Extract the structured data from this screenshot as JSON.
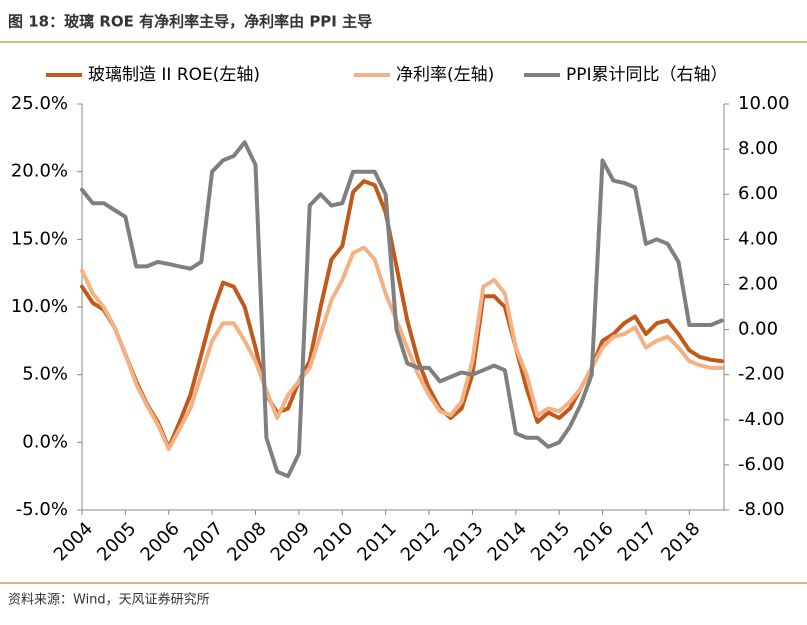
{
  "chart_data": {
    "type": "line",
    "title": "图 18：玻璃 ROE 有净利率主导，净利率由 PPI 主导",
    "source": "资料来源：Wind，天风证券研究所",
    "x": [
      2004,
      2004.25,
      2004.5,
      2004.75,
      2005,
      2005.25,
      2005.5,
      2005.75,
      2006,
      2006.25,
      2006.5,
      2006.75,
      2007,
      2007.25,
      2007.5,
      2007.75,
      2008,
      2008.25,
      2008.5,
      2008.75,
      2009,
      2009.25,
      2009.5,
      2009.75,
      2010,
      2010.25,
      2010.5,
      2010.75,
      2011,
      2011.25,
      2011.5,
      2011.75,
      2012,
      2012.25,
      2012.5,
      2012.75,
      2013,
      2013.25,
      2013.5,
      2013.75,
      2014,
      2014.25,
      2014.5,
      2014.75,
      2015,
      2015.25,
      2015.5,
      2015.75,
      2016,
      2016.25,
      2016.5,
      2016.75,
      2017,
      2017.25,
      2017.5,
      2017.75,
      2018,
      2018.25,
      2018.5,
      2018.75
    ],
    "xlim": [
      2004,
      2018.8
    ],
    "xticks": [
      2004,
      2005,
      2006,
      2007,
      2008,
      2009,
      2010,
      2011,
      2012,
      2013,
      2014,
      2015,
      2016,
      2017,
      2018
    ],
    "ylim": [
      -5,
      25
    ],
    "yticks": [
      {
        "value": -5,
        "label": "-5.0%"
      },
      {
        "value": 0,
        "label": "0.0%"
      },
      {
        "value": 5,
        "label": "5.0%"
      },
      {
        "value": 10,
        "label": "10.0%"
      },
      {
        "value": 15,
        "label": "15.0%"
      },
      {
        "value": 20,
        "label": "20.0%"
      },
      {
        "value": 25,
        "label": "25.0%"
      }
    ],
    "y2lim": [
      -8,
      10
    ],
    "y2ticks": [
      {
        "value": -8,
        "label": "-8.00"
      },
      {
        "value": -6,
        "label": "-6.00"
      },
      {
        "value": -4,
        "label": "-4.00"
      },
      {
        "value": -2,
        "label": "-2.00"
      },
      {
        "value": 0,
        "label": "0.00"
      },
      {
        "value": 2,
        "label": "2.00"
      },
      {
        "value": 4,
        "label": "4.00"
      },
      {
        "value": 6,
        "label": "6.00"
      },
      {
        "value": 8,
        "label": "8.00"
      },
      {
        "value": 10,
        "label": "10.00"
      }
    ],
    "grid": false,
    "legend": "top",
    "series": [
      {
        "name": "玻璃制造 II ROE(左轴)",
        "color": "#c0591a",
        "values": [
          11.5,
          10.3,
          9.8,
          8.5,
          6.5,
          4.5,
          2.8,
          1.5,
          -0.4,
          1.5,
          3.5,
          6.5,
          9.5,
          11.8,
          11.5,
          10,
          7,
          3.5,
          2.2,
          2.5,
          4.5,
          6,
          10,
          13.5,
          14.5,
          18.5,
          19.3,
          19,
          17,
          13,
          9,
          6,
          4,
          2.5,
          1.8,
          2.5,
          5,
          10.8,
          10.8,
          10,
          7,
          4,
          1.5,
          2.2,
          1.8,
          2.5,
          4,
          5.5,
          7.5,
          8,
          8.8,
          9.3,
          8,
          8.8,
          9,
          8,
          6.8,
          6.3,
          6.1,
          6.0
        ]
      },
      {
        "name": "净利率(左轴)",
        "color": "#f4b183",
        "values": [
          12.7,
          11,
          10,
          8.5,
          6.5,
          4.3,
          2.7,
          1.3,
          -0.5,
          1,
          2.5,
          5,
          7.5,
          8.8,
          8.8,
          7.5,
          6,
          3.8,
          1.8,
          3.5,
          4.5,
          5.5,
          8,
          10.5,
          12,
          14,
          14.4,
          13.5,
          11,
          9,
          7,
          5,
          3.5,
          2.3,
          2,
          3,
          6,
          11.5,
          12,
          11,
          7,
          5,
          2,
          2.5,
          2.3,
          3,
          4,
          5.5,
          7,
          7.8,
          8,
          8.5,
          7,
          7.5,
          7.8,
          7,
          6,
          5.7,
          5.5,
          5.5
        ]
      },
      {
        "name": "PPI累计同比（右轴）",
        "color": "#7f7f7f",
        "axis": "y2",
        "values": [
          6.2,
          5.6,
          5.6,
          5.3,
          5,
          2.8,
          2.8,
          3,
          2.9,
          2.8,
          2.7,
          3,
          7,
          7.5,
          7.7,
          8.3,
          7.3,
          -4.8,
          -6.3,
          -6.5,
          -5.5,
          5.5,
          6,
          5.5,
          5.6,
          7,
          7,
          7,
          6,
          0,
          -1.5,
          -1.7,
          -1.7,
          -2.3,
          -2.1,
          -1.9,
          -2,
          -1.8,
          -1.6,
          -1.8,
          -4.6,
          -4.8,
          -4.8,
          -5.2,
          -5,
          -4.3,
          -3.3,
          -2,
          7.5,
          6.6,
          6.5,
          6.3,
          3.8,
          4,
          3.8,
          3,
          0.2,
          0.2,
          0.2,
          0.4
        ]
      }
    ]
  }
}
